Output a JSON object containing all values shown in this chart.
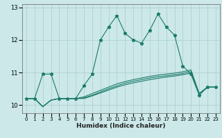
{
  "xlabel": "Humidex (Indice chaleur)",
  "x": [
    0,
    1,
    2,
    3,
    4,
    5,
    6,
    7,
    8,
    9,
    10,
    11,
    12,
    13,
    14,
    15,
    16,
    17,
    18,
    19,
    20,
    21,
    22,
    23
  ],
  "line1": [
    10.2,
    10.2,
    10.95,
    10.95,
    10.2,
    10.2,
    10.2,
    10.6,
    10.95,
    12.0,
    12.4,
    12.75,
    12.2,
    12.0,
    11.9,
    12.3,
    12.8,
    12.4,
    12.15,
    11.2,
    10.95,
    10.3,
    10.55,
    10.55
  ],
  "line2": [
    10.2,
    10.2,
    9.95,
    10.15,
    10.2,
    10.2,
    10.2,
    10.25,
    10.35,
    10.45,
    10.55,
    10.65,
    10.72,
    10.78,
    10.83,
    10.88,
    10.92,
    10.95,
    10.98,
    11.02,
    11.08,
    10.35,
    10.55,
    10.55
  ],
  "line3": [
    10.2,
    10.2,
    9.95,
    10.15,
    10.2,
    10.2,
    10.2,
    10.22,
    10.3,
    10.4,
    10.5,
    10.59,
    10.67,
    10.73,
    10.78,
    10.83,
    10.87,
    10.9,
    10.93,
    10.97,
    11.03,
    10.35,
    10.55,
    10.55
  ],
  "line4": [
    10.2,
    10.2,
    9.95,
    10.15,
    10.2,
    10.2,
    10.2,
    10.2,
    10.28,
    10.37,
    10.46,
    10.55,
    10.62,
    10.68,
    10.73,
    10.78,
    10.82,
    10.86,
    10.89,
    10.93,
    10.98,
    10.35,
    10.55,
    10.55
  ],
  "line_color": "#1a7a6a",
  "bg_color": "#cce8e8",
  "grid_color": "#aacccc",
  "ylim": [
    9.75,
    13.1
  ],
  "yticks": [
    10,
    11,
    12,
    13
  ],
  "xlim": [
    -0.5,
    23.5
  ],
  "ylabel_fontsize": 6,
  "xlabel_fontsize": 6.5,
  "tick_fontsize": 5.0,
  "linewidth": 0.8,
  "markersize": 3.5
}
